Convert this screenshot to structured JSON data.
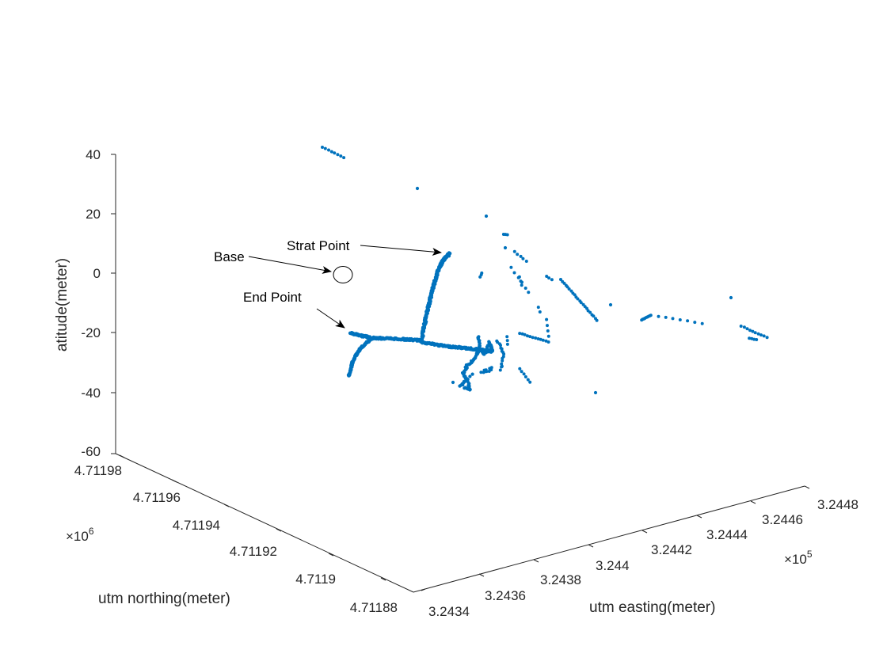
{
  "chart_data": {
    "type": "scatter",
    "projection": "3d",
    "xlabel": "utm easting(meter)",
    "ylabel": "utm northing(meter)",
    "zlabel": "atitude(meter)",
    "x_ticks": [
      "3.2434",
      "3.2436",
      "3.2438",
      "3.244",
      "3.2442",
      "3.2444",
      "3.2446",
      "3.2448"
    ],
    "x_exponent": "×10^5",
    "y_ticks": [
      "4.71188",
      "4.7119",
      "4.71192",
      "4.71194",
      "4.71196",
      "4.71198"
    ],
    "y_exponent": "×10^6",
    "z_ticks": [
      "-60",
      "-40",
      "-20",
      "0",
      "20",
      "40"
    ],
    "zlim": [
      -60,
      40
    ],
    "grid": false,
    "marker_color": "#0072BD",
    "annotations": [
      {
        "text": "Strat Point"
      },
      {
        "text": "Base"
      },
      {
        "text": "End Point"
      }
    ]
  }
}
